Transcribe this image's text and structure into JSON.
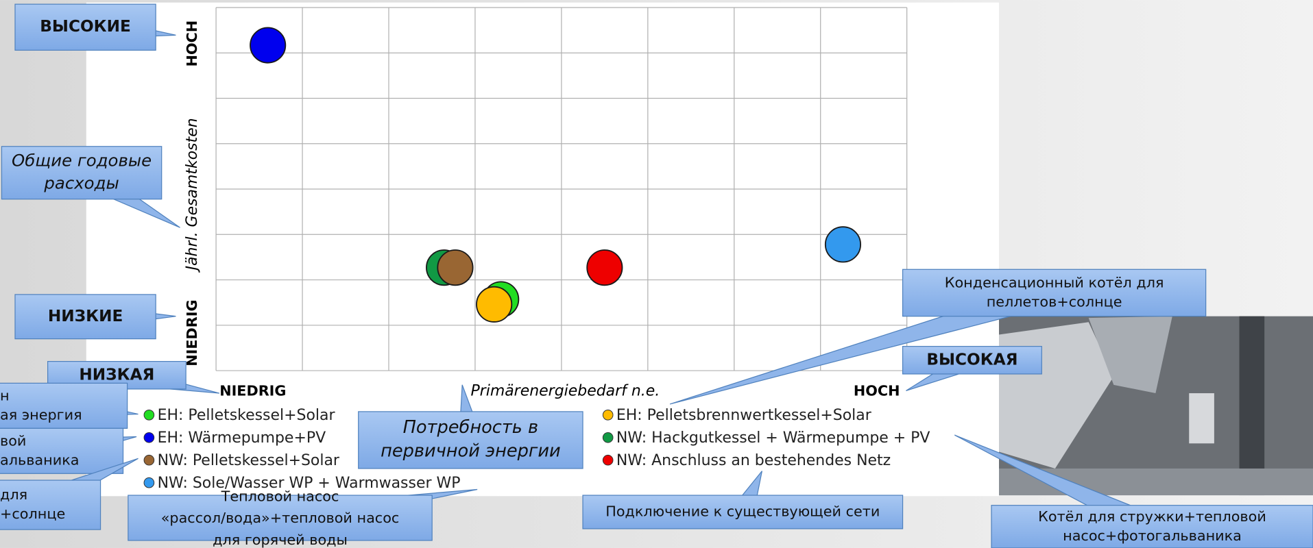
{
  "chart_data": {
    "type": "scatter",
    "ylabel": "Jährl. Gesamtkosten",
    "xlabel": "Primärenergiebedarf n.e.",
    "x_low_label": "NIEDRIG",
    "x_high_label": "HOCH",
    "y_low_label": "NIEDRIG",
    "y_high_label": "HOCH",
    "xlim": [
      0,
      8
    ],
    "ylim": [
      0,
      8
    ],
    "xticks": [
      0,
      1,
      2,
      3,
      4,
      5,
      6,
      7,
      8
    ],
    "yticks": [
      0,
      1,
      2,
      3,
      4,
      5,
      6,
      7,
      8
    ],
    "grid": true,
    "series": [
      {
        "name": "EH: Pelletskessel+Solar",
        "color": "#22dd22",
        "x": [
          3.3
        ],
        "values": [
          1.57
        ]
      },
      {
        "name": "EH: Wärmepumpe+PV",
        "color": "#0000ee",
        "x": [
          0.6
        ],
        "values": [
          7.17
        ]
      },
      {
        "name": "NW: Pelletskessel+Solar",
        "color": "#996633",
        "x": [
          2.77
        ],
        "values": [
          2.27
        ]
      },
      {
        "name": "NW: Sole/Wasser WP + Warmwasser WP",
        "color": "#3399ee",
        "x": [
          7.26
        ],
        "values": [
          2.78
        ]
      },
      {
        "name": "EH: Pelletsbrennwertkessel+Solar",
        "color": "#ffbb00",
        "x": [
          3.22
        ],
        "values": [
          1.46
        ]
      },
      {
        "name": "NW: Hackgutkessel + Wärmepumpe + PV",
        "color": "#119944",
        "x": [
          2.64
        ],
        "values": [
          2.27
        ]
      },
      {
        "name": "NW: Anschluss an bestehendes Netz",
        "color": "#ee0000",
        "x": [
          4.5
        ],
        "values": [
          2.27
        ]
      }
    ]
  },
  "callouts": [
    {
      "lines": [
        "ВЫСОКИЕ"
      ]
    },
    {
      "lines": [
        "Общие годовые",
        "расходы"
      ]
    },
    {
      "lines": [
        "НИЗКИЕ"
      ]
    },
    {
      "lines": [
        "НИЗКАЯ"
      ]
    },
    {
      "lines": [
        "ВЫСОКАЯ"
      ]
    },
    {
      "lines": [
        "Потребность в",
        "первичной энергии"
      ]
    },
    {
      "lines": [
        "Конденсационный котёл для",
        "пеллетов+солнце"
      ]
    },
    {
      "lines": [
        "Подключение к существующей сети"
      ]
    },
    {
      "lines": [
        "Котёл для стружки+тепловой",
        "насос+фотогальваника"
      ]
    },
    {
      "lines": [
        "Тепловой насос",
        "«рассол/вода»+тепловой насос",
        "для горячей воды"
      ]
    },
    {
      "lines": [
        "н",
        "ая энергия"
      ]
    },
    {
      "lines": [
        "вой",
        "альваника"
      ]
    },
    {
      "lines": [
        "для",
        "+солнце"
      ]
    }
  ]
}
